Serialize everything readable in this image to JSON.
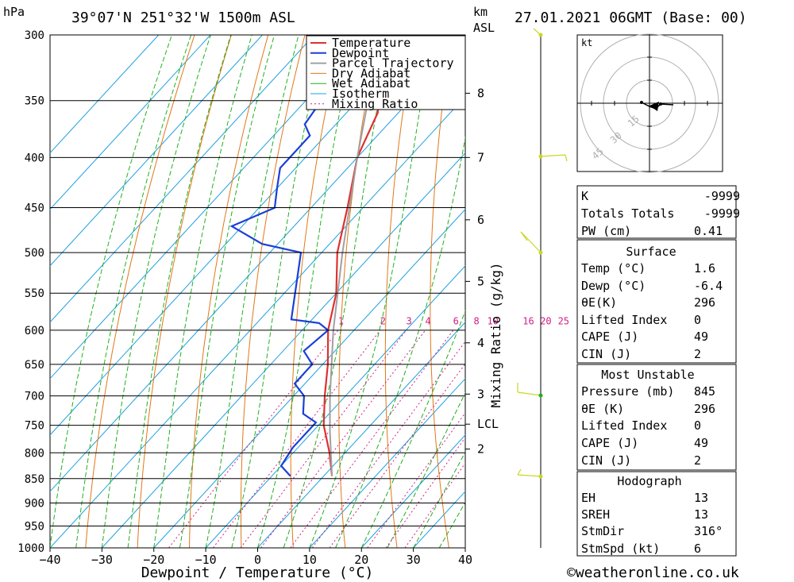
{
  "header": {
    "location": "39°07'N  251°32'W  1500m  ASL",
    "datetime": "27.01.2021  06GMT  (Base: 00)",
    "pressure_unit": "hPa",
    "height_unit_1": "km",
    "height_unit_2": "ASL"
  },
  "chart_data": {
    "type": "line",
    "xlabel": "Dewpoint / Temperature (°C)",
    "ylabel": "hPa",
    "xlim": [
      -40,
      40
    ],
    "ylim": [
      1000,
      300
    ],
    "x_ticks": [
      "-40",
      "-30",
      "-20",
      "-10",
      "0",
      "10",
      "20",
      "30",
      "40"
    ],
    "pressure_levels": [
      300,
      350,
      400,
      450,
      500,
      550,
      600,
      650,
      700,
      750,
      800,
      850,
      900,
      950,
      1000
    ],
    "height_ticks": [
      {
        "label": "8",
        "p": 344
      },
      {
        "label": "7",
        "p": 400
      },
      {
        "label": "6",
        "p": 463
      },
      {
        "label": "5",
        "p": 535
      },
      {
        "label": "4",
        "p": 618
      },
      {
        "label": "3",
        "p": 697
      },
      {
        "label": "LCL",
        "p": 748
      },
      {
        "label": "2",
        "p": 793
      }
    ],
    "mixing_ratio_label": "Mixing Ratio (g/kg)",
    "mixing_ratio_values": [
      "1",
      "2",
      "3",
      "4",
      "6",
      "8",
      "10",
      "16",
      "20",
      "25"
    ],
    "mixing_ratio_label_pressure": 595,
    "legend": [
      "Temperature",
      "Dewpoint",
      "Parcel Trajectory",
      "Dry Adiabat",
      "Wet Adiabat",
      "Isotherm",
      "Mixing Ratio"
    ],
    "series": [
      {
        "name": "Temperature",
        "color": "#e03030",
        "points": [
          [
            845,
            1.6
          ],
          [
            800,
            -3
          ],
          [
            750,
            -9
          ],
          [
            700,
            -14
          ],
          [
            650,
            -19
          ],
          [
            600,
            -25
          ],
          [
            550,
            -30
          ],
          [
            500,
            -37
          ],
          [
            450,
            -43
          ],
          [
            400,
            -50
          ],
          [
            360,
            -54
          ],
          [
            350,
            -56
          ],
          [
            335,
            -55
          ],
          [
            330,
            -56
          ],
          [
            320,
            -53
          ],
          [
            310,
            -50
          ],
          [
            302,
            -46
          ],
          [
            300,
            -45
          ]
        ]
      },
      {
        "name": "Dewpoint",
        "color": "#1a3fd8",
        "points": [
          [
            845,
            -6.4
          ],
          [
            825,
            -10
          ],
          [
            790,
            -11
          ],
          [
            745,
            -11
          ],
          [
            730,
            -15
          ],
          [
            700,
            -18
          ],
          [
            680,
            -22
          ],
          [
            650,
            -22
          ],
          [
            630,
            -26
          ],
          [
            600,
            -25
          ],
          [
            590,
            -28
          ],
          [
            585,
            -34
          ],
          [
            500,
            -44
          ],
          [
            490,
            -53
          ],
          [
            470,
            -62
          ],
          [
            450,
            -57
          ],
          [
            430,
            -60
          ],
          [
            410,
            -63
          ],
          [
            380,
            -63
          ],
          [
            370,
            -66
          ],
          [
            350,
            -67
          ],
          [
            345,
            -68
          ],
          [
            320,
            -65
          ],
          [
            310,
            -73
          ],
          [
            300,
            -80
          ]
        ]
      },
      {
        "name": "Parcel Trajectory",
        "color": "#a0a0a0",
        "points": [
          [
            845,
            1.6
          ],
          [
            760,
            -6.8
          ],
          [
            700,
            -13
          ],
          [
            600,
            -24
          ],
          [
            500,
            -36
          ],
          [
            400,
            -50
          ],
          [
            350,
            -58
          ],
          [
            300,
            -66
          ]
        ]
      }
    ]
  },
  "hodograph": {
    "unit": "kt",
    "ring_labels": [
      "15",
      "30",
      "45"
    ]
  },
  "indices": {
    "k": {
      "label": "K",
      "value": "-9999"
    },
    "tt": {
      "label": "Totals Totals",
      "value": "-9999"
    },
    "pw": {
      "label": "PW (cm)",
      "value": "0.41"
    }
  },
  "surface": {
    "title": "Surface",
    "temp": {
      "label": "Temp (°C)",
      "value": "1.6"
    },
    "dewp": {
      "label": "Dewp (°C)",
      "value": "-6.4"
    },
    "theta": {
      "label": "θE(K)",
      "value": "296"
    },
    "li": {
      "label": "Lifted Index",
      "value": "0"
    },
    "cape": {
      "label": "CAPE (J)",
      "value": "49"
    },
    "cin": {
      "label": "CIN (J)",
      "value": "2"
    }
  },
  "most_unstable": {
    "title": "Most Unstable",
    "pressure": {
      "label": "Pressure (mb)",
      "value": "845"
    },
    "theta": {
      "label": "θE (K)",
      "value": "296"
    },
    "li": {
      "label": "Lifted Index",
      "value": "0"
    },
    "cape": {
      "label": "CAPE (J)",
      "value": "49"
    },
    "cin": {
      "label": "CIN (J)",
      "value": "2"
    }
  },
  "hodo_table": {
    "title": "Hodograph",
    "eh": {
      "label": "EH",
      "value": "13"
    },
    "sreh": {
      "label": "SREH",
      "value": "13"
    },
    "stmdir": {
      "label": "StmDir",
      "value": "316°"
    },
    "stmspd": {
      "label": "StmSpd (kt)",
      "value": "6"
    }
  },
  "footer": {
    "copyright": "©weatheronline.co.uk"
  },
  "colors": {
    "temperature": "#e03030",
    "dewpoint": "#1a3fd8",
    "parcel": "#a0a0a0",
    "dry_adiabat": "#e07818",
    "wet_adiabat": "#20b020",
    "isotherm": "#1ea0e0",
    "mixing_ratio": "#d0208a",
    "wind": "#c8d820"
  }
}
